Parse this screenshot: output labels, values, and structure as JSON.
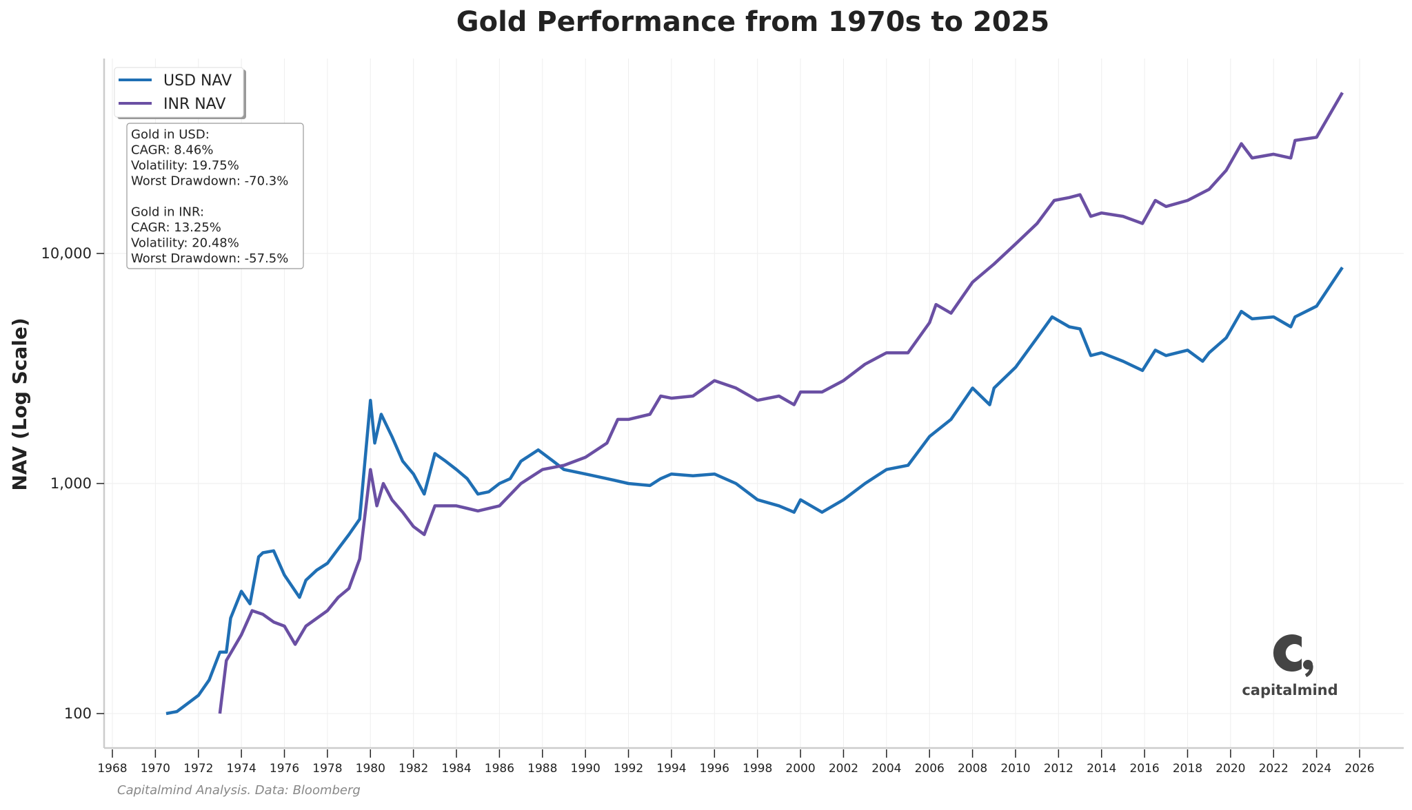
{
  "chart_data": {
    "type": "line",
    "title": "Gold Performance from 1970s to 2025",
    "xlabel": "",
    "ylabel": "NAV (Log Scale)",
    "y_scale": "log",
    "xlim": [
      1967.6,
      2028
    ],
    "ylim": [
      71,
      70000
    ],
    "grid": true,
    "legend_position": "top-left",
    "x_ticks": [
      "1968",
      "1970",
      "1972",
      "1974",
      "1976",
      "1978",
      "1980",
      "1982",
      "1984",
      "1986",
      "1988",
      "1990",
      "1992",
      "1994",
      "1996",
      "1998",
      "2000",
      "2002",
      "2004",
      "2006",
      "2008",
      "2010",
      "2012",
      "2014",
      "2016",
      "2018",
      "2020",
      "2022",
      "2024",
      "2026"
    ],
    "y_ticks": [
      {
        "value": 100,
        "label": "100"
      },
      {
        "value": 1000,
        "label": "1,000"
      },
      {
        "value": 10000,
        "label": "10,000"
      }
    ],
    "series": [
      {
        "name": "USD NAV",
        "color": "#1f6fb4",
        "x": [
          1970.5,
          1971,
          1972,
          1972.5,
          1973,
          1973.3,
          1973.5,
          1974,
          1974.4,
          1974.8,
          1975,
          1975.5,
          1976,
          1976.7,
          1977,
          1977.5,
          1978,
          1978.5,
          1979,
          1979.5,
          1980,
          1980.2,
          1980.5,
          1981,
          1981.5,
          1982,
          1982.5,
          1983,
          1983.5,
          1984,
          1984.5,
          1985,
          1985.5,
          1986,
          1986.5,
          1987,
          1987.8,
          1988.5,
          1989,
          1990,
          1991,
          1992,
          1993,
          1993.5,
          1994,
          1995,
          1996,
          1997,
          1998,
          1999,
          1999.7,
          2000,
          2001,
          2002,
          2003,
          2004,
          2005,
          2006,
          2007,
          2008,
          2008.8,
          2009,
          2010,
          2011,
          2011.7,
          2012.5,
          2013,
          2013.5,
          2014,
          2015,
          2015.9,
          2016.5,
          2017,
          2018,
          2018.7,
          2019,
          2019.8,
          2020.5,
          2021,
          2022,
          2022.8,
          2023,
          2024,
          2025.2
        ],
        "values": [
          100,
          102,
          120,
          140,
          185,
          185,
          260,
          340,
          300,
          480,
          500,
          510,
          400,
          320,
          380,
          420,
          450,
          520,
          600,
          700,
          2300,
          1500,
          2000,
          1600,
          1250,
          1100,
          900,
          1350,
          1250,
          1150,
          1050,
          900,
          920,
          1000,
          1050,
          1250,
          1400,
          1250,
          1150,
          1100,
          1050,
          1000,
          980,
          1050,
          1100,
          1080,
          1100,
          1000,
          850,
          800,
          750,
          850,
          750,
          850,
          1000,
          1150,
          1200,
          1600,
          1900,
          2600,
          2200,
          2600,
          3200,
          4300,
          5300,
          4800,
          4700,
          3600,
          3700,
          3400,
          3100,
          3800,
          3600,
          3800,
          3400,
          3700,
          4300,
          5600,
          5200,
          5300,
          4800,
          5300,
          5900,
          8700
        ]
      },
      {
        "name": "INR NAV",
        "color": "#6a4fa3",
        "x": [
          1973,
          1973.3,
          1974,
          1974.5,
          1975,
          1975.5,
          1976,
          1976.5,
          1977,
          1978,
          1978.5,
          1979,
          1979.5,
          1980,
          1980.3,
          1980.6,
          1981,
          1981.5,
          1982,
          1982.5,
          1983,
          1984,
          1984.5,
          1985,
          1986,
          1987,
          1988,
          1989,
          1990,
          1991,
          1991.5,
          1992,
          1993,
          1993.5,
          1994,
          1995,
          1996,
          1997,
          1998,
          1999,
          1999.7,
          2000,
          2001,
          2002,
          2003,
          2004,
          2005,
          2006,
          2006.3,
          2007,
          2008,
          2009,
          2010,
          2011,
          2011.8,
          2012.5,
          2013,
          2013.5,
          2014,
          2015,
          2015.9,
          2016.5,
          2017,
          2018,
          2019,
          2019.8,
          2020.5,
          2021,
          2022,
          2022.8,
          2023,
          2024,
          2025.2
        ],
        "values": [
          100,
          170,
          220,
          280,
          270,
          250,
          240,
          200,
          240,
          280,
          320,
          350,
          470,
          1150,
          800,
          1000,
          850,
          750,
          650,
          600,
          800,
          800,
          780,
          760,
          800,
          1000,
          1150,
          1200,
          1300,
          1500,
          1900,
          1900,
          2000,
          2400,
          2350,
          2400,
          2800,
          2600,
          2300,
          2400,
          2200,
          2500,
          2500,
          2800,
          3300,
          3700,
          3700,
          5000,
          6000,
          5500,
          7500,
          9000,
          11000,
          13500,
          17000,
          17500,
          18000,
          14500,
          15000,
          14500,
          13500,
          17000,
          16000,
          17000,
          19000,
          23000,
          30000,
          26000,
          27000,
          26000,
          31000,
          32000,
          50000
        ]
      }
    ]
  },
  "stats_box": {
    "lines": [
      "Gold in USD:",
      "CAGR: 8.46%",
      "Volatility: 19.75%",
      "Worst Drawdown: -70.3%",
      "",
      "Gold in INR:",
      "CAGR: 13.25%",
      "Volatility: 20.48%",
      "Worst Drawdown: -57.5%"
    ]
  },
  "footer": "Capitalmind Analysis. Data: Bloomberg",
  "logo": {
    "text": "capitalmind",
    "icon": "capitalmind-c-logo-icon"
  }
}
